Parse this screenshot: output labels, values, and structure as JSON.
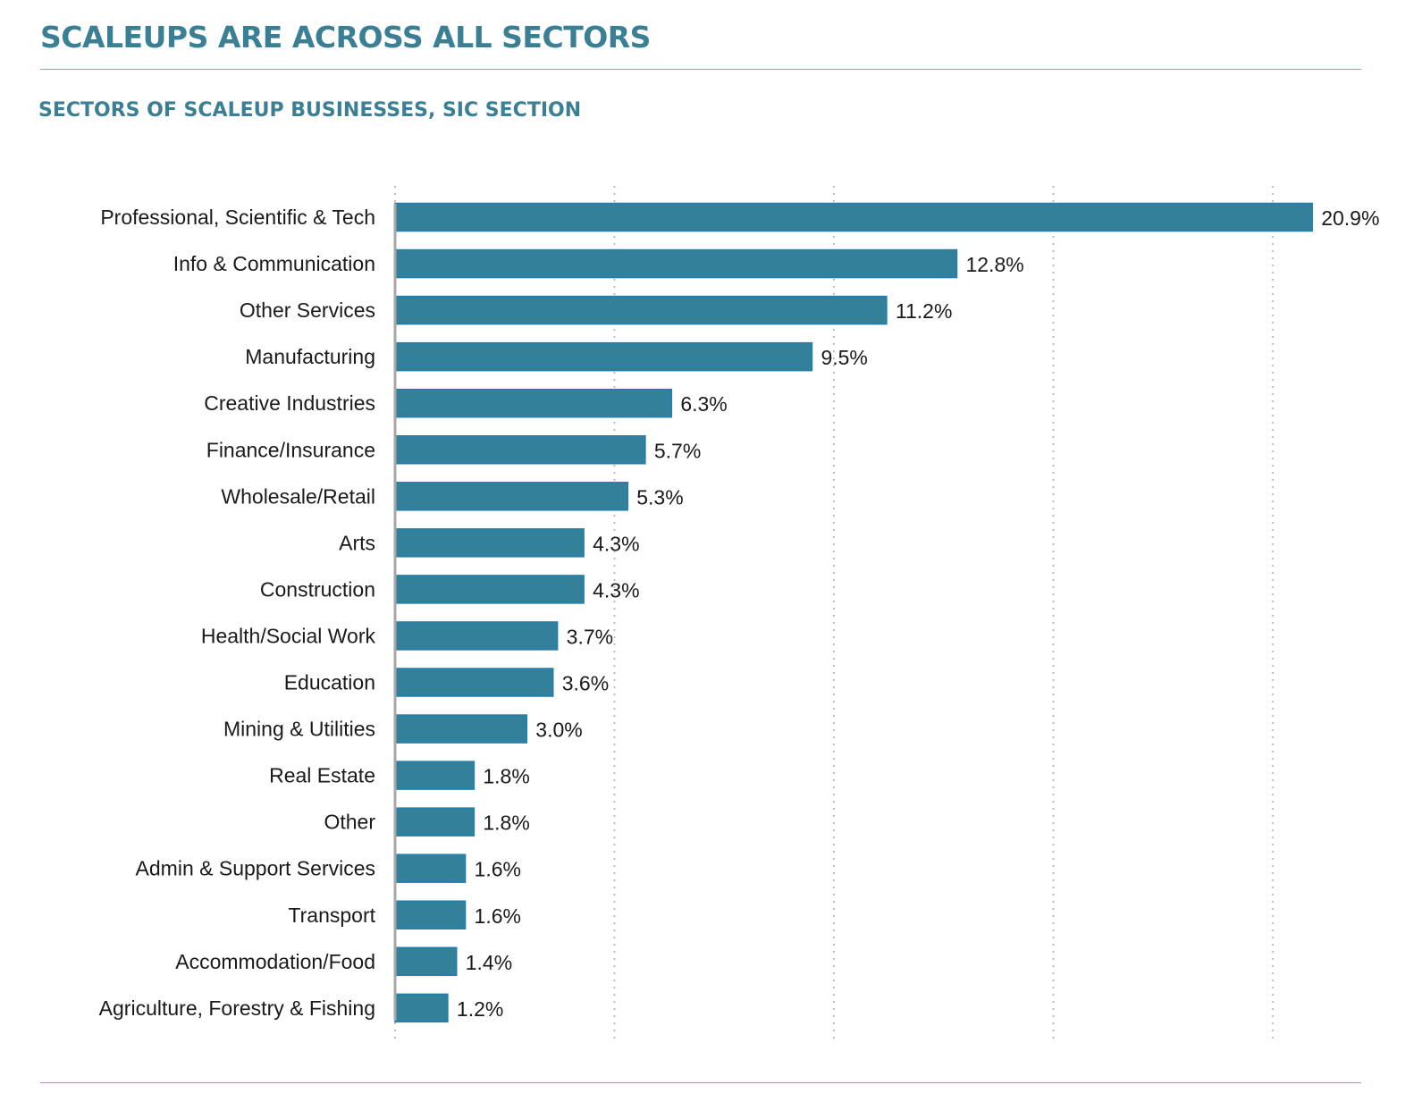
{
  "page": {
    "title": "SCALEUPS ARE ACROSS ALL SECTORS",
    "subtitle": "SECTORS OF SCALEUP BUSINESSES, SIC SECTION"
  },
  "colors": {
    "bar_fill": "#32809a",
    "bar_stroke": "#1f7fb0",
    "title": "#3a7f93",
    "rule": "#7eaab8",
    "grid": "#bdbdbd",
    "axis": "#a7a7a7",
    "text": "#1a1a1a"
  },
  "chart_data": {
    "type": "bar",
    "orientation": "horizontal",
    "categories": [
      "Professional, Scientific & Tech",
      "Info & Communication",
      "Other Services",
      "Manufacturing",
      "Creative Industries",
      "Finance/Insurance",
      "Wholesale/Retail",
      "Arts",
      "Construction",
      "Health/Social Work",
      "Education",
      "Mining & Utilities",
      "Real Estate",
      "Other",
      "Admin & Support Services",
      "Transport",
      "Accommodation/Food",
      "Agriculture, Forestry & Fishing"
    ],
    "values": [
      20.9,
      12.8,
      11.2,
      9.5,
      6.3,
      5.7,
      5.3,
      4.3,
      4.3,
      3.7,
      3.6,
      3.0,
      1.8,
      1.8,
      1.6,
      1.6,
      1.4,
      1.2
    ],
    "value_labels": [
      "20.9%",
      "12.8%",
      "11.2%",
      "9.5%",
      "6.3%",
      "5.7%",
      "5.3%",
      "4.3%",
      "4.3%",
      "3.7%",
      "3.6%",
      "3.0%",
      "1.8%",
      "1.8%",
      "1.6%",
      "1.6%",
      "1.4%",
      "1.2%"
    ],
    "unit": "%",
    "xlim": [
      0,
      20
    ],
    "grid": "vertical dotted",
    "legend": "none"
  }
}
